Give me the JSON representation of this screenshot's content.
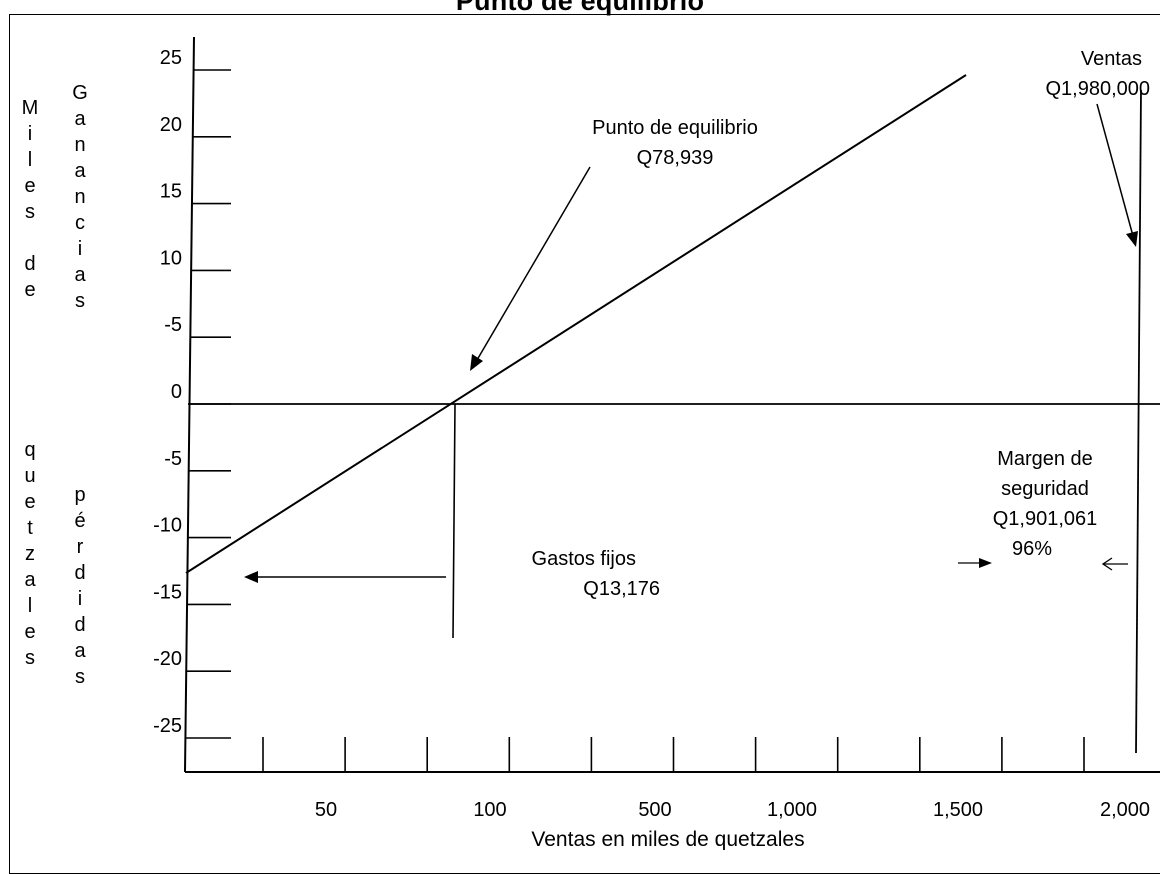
{
  "chart_data": {
    "type": "line",
    "title": "Punto de equilibrio",
    "xlabel": "Ventas en miles de quetzales",
    "ylabel_outer": "Miles de quetzales",
    "ylabel_upper": "Ganancias",
    "ylabel_lower": "pérdidas",
    "y_ticks": [
      "25",
      "20",
      "15",
      "10",
      "-5",
      "0",
      "-5",
      "-10",
      "-15",
      "-20",
      "-25"
    ],
    "x_ticks": [
      "50",
      "100",
      "500",
      "1,000",
      "1,500",
      "2,000"
    ],
    "grid": false,
    "annotations": {
      "break_even": [
        "Punto de equilibrio",
        "Q78,939"
      ],
      "sales": [
        "Ventas",
        "Q1,980,000"
      ],
      "fixed_costs": [
        "Gastos fijos",
        "Q13,176"
      ],
      "safety_margin": [
        "Margen de",
        "seguridad",
        "Q1,901,061",
        "96%"
      ]
    },
    "series": [
      {
        "x_tick_pos": [
          -1.7,
          3.3,
          10.5
        ],
        "y": [
          -13.176,
          0,
          25
        ]
      }
    ]
  }
}
